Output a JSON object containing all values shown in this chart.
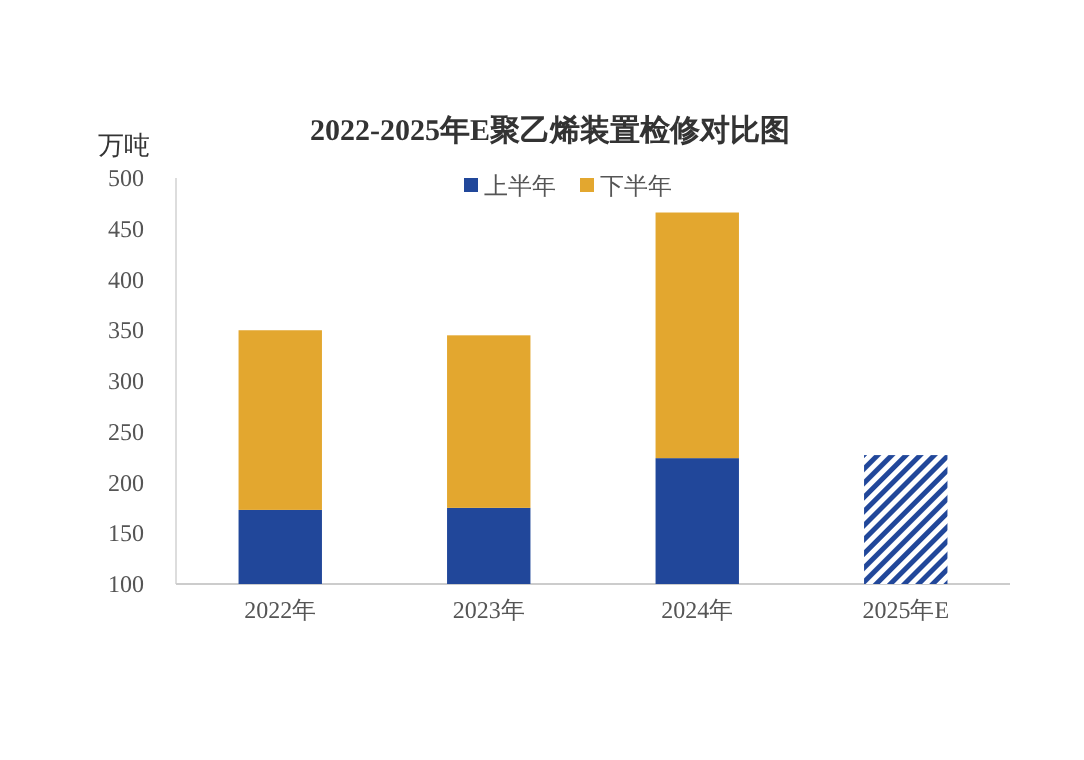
{
  "chart_data": {
    "type": "bar",
    "stacked": true,
    "title": "2022-2025年E聚乙烯装置检修对比图",
    "ylabel": "万吨",
    "categories": [
      "2022年",
      "2023年",
      "2024年",
      "2025年E"
    ],
    "series": [
      {
        "name": "上半年",
        "color": "#21479a",
        "values": [
          173,
          175,
          224,
          227
        ]
      },
      {
        "name": "下半年",
        "color": "#e3a72f",
        "values": [
          177,
          170,
          242,
          null
        ]
      }
    ],
    "ylim": [
      100,
      500
    ],
    "yticks": [
      100,
      150,
      200,
      250,
      300,
      350,
      400,
      450,
      500
    ],
    "grid": false,
    "legend": "top"
  }
}
